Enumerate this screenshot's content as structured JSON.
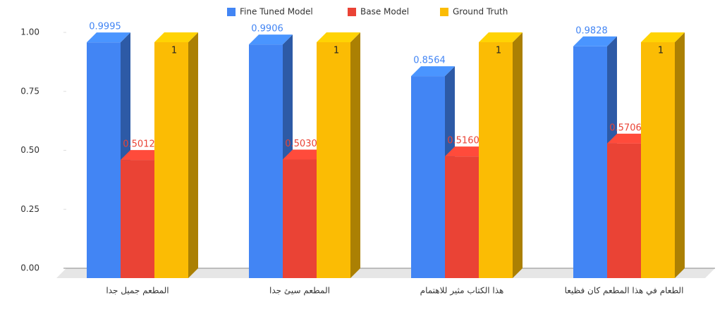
{
  "chart_data": {
    "type": "bar3d",
    "categories": [
      "المطعم جميل جدا",
      "المطعم سيئ جدا",
      "هذا الكتاب مثير للاهتمام",
      "الطعام في هذا المطعم كان فظيعا"
    ],
    "series": [
      {
        "name": "Fine Tuned Model",
        "color": "#4285f4",
        "values": [
          0.9995,
          0.9906,
          0.8564,
          0.9828
        ]
      },
      {
        "name": "Base Model",
        "color": "#ea4335",
        "values": [
          0.5012,
          0.503,
          0.516,
          0.5706
        ],
        "value_labels": [
          "0.5012",
          "0.5030",
          "0.5160",
          "0.5706"
        ]
      },
      {
        "name": "Ground Truth",
        "color": "#fbbc04",
        "values": [
          1,
          1,
          1,
          1
        ]
      }
    ],
    "ylim": [
      0,
      1
    ],
    "yticks": [
      {
        "value": 0,
        "label": "0.00"
      },
      {
        "value": 0.25,
        "label": "0.25"
      },
      {
        "value": 0.5,
        "label": "0.50"
      },
      {
        "value": 0.75,
        "label": "0.75"
      },
      {
        "value": 1,
        "label": "1.00"
      }
    ],
    "legend": "top"
  }
}
